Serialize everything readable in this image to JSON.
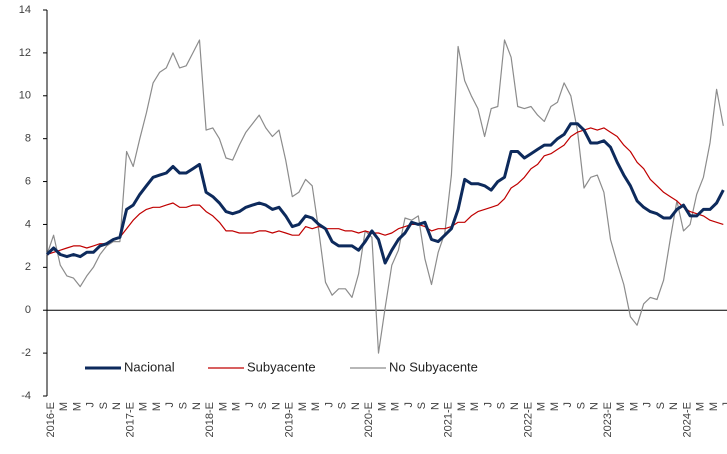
{
  "chart_data": {
    "type": "line",
    "categories": [
      "2016-E",
      null,
      "M",
      null,
      "M",
      null,
      "J",
      null,
      "S",
      null,
      "N",
      null,
      "2017-E",
      null,
      "M",
      null,
      "M",
      null,
      "J",
      null,
      "S",
      null,
      "N",
      null,
      "2018-E",
      null,
      "M",
      null,
      "M",
      null,
      "J",
      null,
      "S",
      null,
      "N",
      null,
      "2019-E",
      null,
      "M",
      null,
      "M",
      null,
      "J",
      null,
      "S",
      null,
      "N",
      null,
      "2020-E",
      null,
      "M",
      null,
      "M",
      null,
      "J",
      null,
      "S",
      null,
      "N",
      null,
      "2021-E",
      null,
      "M",
      null,
      "M",
      null,
      "J",
      null,
      "S",
      null,
      "N",
      null,
      "2022-E",
      null,
      "M",
      null,
      "M",
      null,
      "J",
      null,
      "S",
      null,
      "N",
      null,
      "2023-E",
      null,
      "M",
      null,
      "M",
      null,
      "J",
      null,
      "S",
      null,
      "N",
      null,
      "2024-E",
      null,
      "M",
      null,
      "M",
      null,
      "J"
    ],
    "series": [
      {
        "name": "Nacional",
        "color": "#0d2a5c",
        "width": 3,
        "values": [
          2.6,
          2.9,
          2.6,
          2.5,
          2.6,
          2.5,
          2.7,
          2.7,
          3.0,
          3.1,
          3.3,
          3.4,
          4.7,
          4.9,
          5.4,
          5.8,
          6.2,
          6.3,
          6.4,
          6.7,
          6.4,
          6.4,
          6.6,
          6.8,
          5.5,
          5.3,
          5.0,
          4.6,
          4.5,
          4.6,
          4.8,
          4.9,
          5.0,
          4.9,
          4.7,
          4.8,
          4.4,
          3.9,
          4.0,
          4.4,
          4.3,
          4.0,
          3.8,
          3.2,
          3.0,
          3.0,
          3.0,
          2.8,
          3.2,
          3.7,
          3.3,
          2.2,
          2.8,
          3.3,
          3.6,
          4.1,
          4.0,
          4.1,
          3.3,
          3.2,
          3.5,
          3.8,
          4.7,
          6.1,
          5.9,
          5.9,
          5.8,
          5.6,
          6.0,
          6.2,
          7.4,
          7.4,
          7.1,
          7.3,
          7.5,
          7.7,
          7.7,
          8.0,
          8.2,
          8.7,
          8.7,
          8.4,
          7.8,
          7.8,
          7.9,
          7.6,
          6.9,
          6.3,
          5.8,
          5.1,
          4.8,
          4.6,
          4.5,
          4.3,
          4.3,
          4.7,
          4.9,
          4.4,
          4.4,
          4.7,
          4.7,
          5.0,
          5.6
        ]
      },
      {
        "name": "Subyacente",
        "color": "#c00000",
        "width": 1.2,
        "values": [
          2.6,
          2.7,
          2.8,
          2.9,
          3.0,
          3.0,
          2.9,
          3.0,
          3.1,
          3.1,
          3.3,
          3.4,
          3.8,
          4.2,
          4.5,
          4.7,
          4.8,
          4.8,
          4.9,
          5.0,
          4.8,
          4.8,
          4.9,
          4.9,
          4.6,
          4.4,
          4.1,
          3.7,
          3.7,
          3.6,
          3.6,
          3.6,
          3.7,
          3.7,
          3.6,
          3.7,
          3.6,
          3.5,
          3.5,
          3.9,
          3.8,
          3.9,
          3.8,
          3.8,
          3.8,
          3.7,
          3.7,
          3.6,
          3.7,
          3.6,
          3.6,
          3.5,
          3.6,
          3.8,
          3.9,
          4.0,
          4.0,
          3.9,
          3.7,
          3.8,
          3.8,
          3.9,
          4.1,
          4.1,
          4.4,
          4.6,
          4.7,
          4.8,
          4.9,
          5.2,
          5.7,
          5.9,
          6.2,
          6.6,
          6.8,
          7.2,
          7.3,
          7.5,
          7.7,
          8.1,
          8.3,
          8.4,
          8.5,
          8.4,
          8.5,
          8.3,
          8.1,
          7.7,
          7.4,
          6.9,
          6.6,
          6.1,
          5.8,
          5.5,
          5.3,
          5.1,
          4.8,
          4.6,
          4.5,
          4.4,
          4.2,
          4.1,
          4.0
        ]
      },
      {
        "name": "No Subyacente",
        "color": "#8c8c8c",
        "width": 1.2,
        "values": [
          2.6,
          3.5,
          2.1,
          1.6,
          1.5,
          1.1,
          1.6,
          2.0,
          2.6,
          3.0,
          3.2,
          3.2,
          7.4,
          6.7,
          8.0,
          9.2,
          10.6,
          11.1,
          11.3,
          12.0,
          11.3,
          11.4,
          12.0,
          12.6,
          8.4,
          8.5,
          8.0,
          7.1,
          7.0,
          7.7,
          8.3,
          8.7,
          9.1,
          8.5,
          8.1,
          8.4,
          7.0,
          5.3,
          5.5,
          6.1,
          5.8,
          3.7,
          1.3,
          0.7,
          1.0,
          1.0,
          0.6,
          1.7,
          3.7,
          3.4,
          -2.0,
          0.1,
          2.1,
          2.8,
          4.3,
          4.2,
          4.4,
          2.4,
          1.2,
          2.7,
          3.6,
          6.3,
          12.3,
          10.7,
          10.0,
          9.4,
          8.1,
          9.4,
          9.5,
          12.6,
          11.8,
          9.5,
          9.4,
          9.5,
          9.1,
          8.8,
          9.5,
          9.7,
          10.6,
          10.0,
          8.4,
          5.7,
          6.2,
          6.3,
          5.5,
          3.3,
          2.2,
          1.2,
          -0.3,
          -0.7,
          0.3,
          0.6,
          0.5,
          1.4,
          3.3,
          5.1,
          3.7,
          4.0,
          5.4,
          6.2,
          7.8,
          10.3,
          8.6
        ]
      }
    ],
    "ylim": [
      -4,
      14
    ],
    "yticks": [
      -4,
      -2,
      0,
      2,
      4,
      6,
      8,
      10,
      12,
      14
    ],
    "grid": false,
    "legend": "bottom-left"
  }
}
